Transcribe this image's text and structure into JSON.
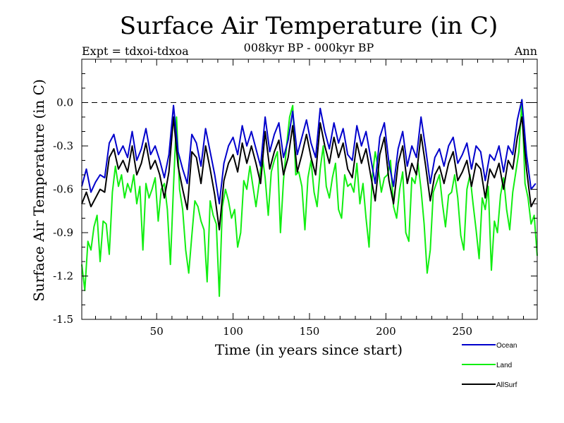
{
  "chart_data": {
    "type": "line",
    "title": "Surface Air Temperature (in C)",
    "subtitle": "008kyr BP - 000kyr BP",
    "left_label": "Expt = tdxoi-tdxoa",
    "right_label": "Ann",
    "xlabel": "Time (in years since start)",
    "ylabel": "Surface Air Temperature (in C)",
    "xlim": [
      1,
      299
    ],
    "ylim": [
      -1.5,
      0.3
    ],
    "xticks": [
      50,
      100,
      150,
      200,
      250
    ],
    "xtick_labels": [
      "50",
      "100",
      "150",
      "200",
      "250"
    ],
    "yticks": [
      -1.5,
      -1.2,
      -0.9,
      -0.6,
      -0.3,
      0.0
    ],
    "ytick_labels": [
      "-1.5",
      "-1.2",
      "-0.9",
      "-0.6",
      "-0.3",
      "0.0"
    ],
    "reference_line": 0.0,
    "series": [
      {
        "name": "Ocean",
        "color": "#0000cc",
        "x": [
          1,
          4,
          7,
          10,
          13,
          16,
          19,
          22,
          25,
          28,
          31,
          34,
          37,
          40,
          43,
          46,
          49,
          52,
          55,
          58,
          61,
          64,
          67,
          70,
          73,
          76,
          79,
          82,
          85,
          88,
          91,
          94,
          97,
          100,
          103,
          106,
          109,
          112,
          115,
          118,
          121,
          124,
          127,
          130,
          133,
          136,
          139,
          142,
          145,
          148,
          151,
          154,
          157,
          160,
          163,
          166,
          169,
          172,
          175,
          178,
          181,
          184,
          187,
          190,
          193,
          196,
          199,
          202,
          205,
          208,
          211,
          214,
          217,
          220,
          223,
          226,
          229,
          232,
          235,
          238,
          241,
          244,
          247,
          250,
          253,
          256,
          259,
          262,
          265,
          268,
          271,
          274,
          277,
          280,
          283,
          286,
          289,
          292,
          295,
          298
        ],
        "values": [
          -0.58,
          -0.46,
          -0.62,
          -0.55,
          -0.5,
          -0.52,
          -0.28,
          -0.22,
          -0.36,
          -0.3,
          -0.38,
          -0.2,
          -0.4,
          -0.32,
          -0.18,
          -0.36,
          -0.3,
          -0.4,
          -0.52,
          -0.36,
          -0.02,
          -0.34,
          -0.46,
          -0.56,
          -0.22,
          -0.28,
          -0.44,
          -0.18,
          -0.34,
          -0.5,
          -0.7,
          -0.42,
          -0.3,
          -0.24,
          -0.36,
          -0.16,
          -0.3,
          -0.2,
          -0.32,
          -0.44,
          -0.1,
          -0.34,
          -0.22,
          -0.14,
          -0.38,
          -0.26,
          -0.06,
          -0.36,
          -0.24,
          -0.12,
          -0.28,
          -0.38,
          -0.04,
          -0.2,
          -0.32,
          -0.14,
          -0.28,
          -0.18,
          -0.36,
          -0.4,
          -0.16,
          -0.3,
          -0.2,
          -0.38,
          -0.56,
          -0.24,
          -0.14,
          -0.42,
          -0.58,
          -0.32,
          -0.2,
          -0.44,
          -0.3,
          -0.38,
          -0.1,
          -0.32,
          -0.56,
          -0.38,
          -0.32,
          -0.44,
          -0.3,
          -0.24,
          -0.42,
          -0.36,
          -0.28,
          -0.46,
          -0.3,
          -0.34,
          -0.54,
          -0.36,
          -0.4,
          -0.3,
          -0.48,
          -0.3,
          -0.36,
          -0.12,
          0.02,
          -0.36,
          -0.6,
          -0.56
        ]
      },
      {
        "name": "Land",
        "color": "#11ee11",
        "x": [
          1,
          3,
          5,
          7,
          9,
          11,
          13,
          15,
          17,
          19,
          21,
          23,
          25,
          27,
          29,
          31,
          33,
          35,
          37,
          39,
          41,
          43,
          45,
          47,
          49,
          51,
          53,
          55,
          57,
          59,
          61,
          63,
          65,
          67,
          69,
          71,
          73,
          75,
          77,
          79,
          81,
          83,
          85,
          87,
          89,
          91,
          93,
          95,
          97,
          99,
          101,
          103,
          105,
          107,
          109,
          111,
          113,
          115,
          117,
          119,
          121,
          123,
          125,
          127,
          129,
          131,
          133,
          135,
          137,
          139,
          141,
          143,
          145,
          147,
          149,
          151,
          153,
          155,
          157,
          159,
          161,
          163,
          165,
          167,
          169,
          171,
          173,
          175,
          177,
          179,
          181,
          183,
          185,
          187,
          189,
          191,
          193,
          195,
          197,
          199,
          201,
          203,
          205,
          207,
          209,
          211,
          213,
          215,
          217,
          219,
          221,
          223,
          225,
          227,
          229,
          231,
          233,
          235,
          237,
          239,
          241,
          243,
          245,
          247,
          249,
          251,
          253,
          255,
          257,
          259,
          261,
          263,
          265,
          267,
          269,
          271,
          273,
          275,
          277,
          279,
          281,
          283,
          285,
          287,
          289,
          291,
          293,
          295,
          297,
          299
        ],
        "values": [
          -1.12,
          -1.3,
          -0.96,
          -1.02,
          -0.86,
          -0.78,
          -1.1,
          -0.82,
          -0.84,
          -1.05,
          -0.62,
          -0.44,
          -0.58,
          -0.5,
          -0.66,
          -0.56,
          -0.62,
          -0.5,
          -0.7,
          -0.58,
          -1.02,
          -0.56,
          -0.66,
          -0.6,
          -0.52,
          -0.82,
          -0.6,
          -0.56,
          -0.74,
          -1.12,
          -0.58,
          -0.1,
          -0.6,
          -0.74,
          -1.02,
          -1.18,
          -0.92,
          -0.68,
          -0.72,
          -0.82,
          -0.88,
          -1.24,
          -0.68,
          -0.78,
          -0.84,
          -1.34,
          -0.72,
          -0.6,
          -0.68,
          -0.8,
          -0.74,
          -1.0,
          -0.9,
          -0.54,
          -0.6,
          -0.44,
          -0.58,
          -0.72,
          -0.56,
          -0.36,
          -0.52,
          -0.78,
          -0.48,
          -0.4,
          -0.34,
          -0.9,
          -0.54,
          -0.3,
          -0.1,
          -0.02,
          -0.5,
          -0.48,
          -0.58,
          -0.88,
          -0.52,
          -0.4,
          -0.62,
          -0.72,
          -0.46,
          -0.3,
          -0.58,
          -0.66,
          -0.52,
          -0.42,
          -0.74,
          -0.8,
          -0.5,
          -0.58,
          -0.56,
          -0.62,
          -0.42,
          -0.7,
          -0.56,
          -0.8,
          -1.0,
          -0.52,
          -0.34,
          -0.46,
          -0.62,
          -0.52,
          -0.5,
          -0.4,
          -0.72,
          -0.8,
          -0.6,
          -0.48,
          -0.9,
          -0.96,
          -0.52,
          -0.56,
          -0.42,
          -0.6,
          -0.84,
          -1.18,
          -1.02,
          -0.62,
          -0.56,
          -0.5,
          -0.7,
          -0.86,
          -0.64,
          -0.62,
          -0.5,
          -0.66,
          -0.92,
          -1.02,
          -0.6,
          -0.5,
          -0.7,
          -0.88,
          -1.08,
          -0.66,
          -0.74,
          -0.58,
          -1.16,
          -0.82,
          -0.9,
          -0.64,
          -0.52,
          -0.74,
          -0.88,
          -0.62,
          -0.48,
          -0.34,
          0.02,
          -0.56,
          -0.66,
          -0.84,
          -0.78,
          -1.06
        ]
      },
      {
        "name": "AllSurf",
        "color": "#000000",
        "x": [
          1,
          4,
          7,
          10,
          13,
          16,
          19,
          22,
          25,
          28,
          31,
          34,
          37,
          40,
          43,
          46,
          49,
          52,
          55,
          58,
          61,
          64,
          67,
          70,
          73,
          76,
          79,
          82,
          85,
          88,
          91,
          94,
          97,
          100,
          103,
          106,
          109,
          112,
          115,
          118,
          121,
          124,
          127,
          130,
          133,
          136,
          139,
          142,
          145,
          148,
          151,
          154,
          157,
          160,
          163,
          166,
          169,
          172,
          175,
          178,
          181,
          184,
          187,
          190,
          193,
          196,
          199,
          202,
          205,
          208,
          211,
          214,
          217,
          220,
          223,
          226,
          229,
          232,
          235,
          238,
          241,
          244,
          247,
          250,
          253,
          256,
          259,
          262,
          265,
          268,
          271,
          274,
          277,
          280,
          283,
          286,
          289,
          292,
          295,
          298
        ],
        "values": [
          -0.7,
          -0.62,
          -0.72,
          -0.66,
          -0.6,
          -0.62,
          -0.38,
          -0.32,
          -0.46,
          -0.4,
          -0.48,
          -0.3,
          -0.5,
          -0.42,
          -0.28,
          -0.46,
          -0.4,
          -0.5,
          -0.66,
          -0.48,
          -0.1,
          -0.44,
          -0.6,
          -0.74,
          -0.34,
          -0.38,
          -0.56,
          -0.3,
          -0.46,
          -0.64,
          -0.88,
          -0.54,
          -0.42,
          -0.36,
          -0.48,
          -0.28,
          -0.42,
          -0.3,
          -0.42,
          -0.56,
          -0.2,
          -0.46,
          -0.34,
          -0.26,
          -0.5,
          -0.38,
          -0.16,
          -0.48,
          -0.36,
          -0.22,
          -0.38,
          -0.5,
          -0.14,
          -0.3,
          -0.42,
          -0.24,
          -0.38,
          -0.28,
          -0.46,
          -0.52,
          -0.28,
          -0.42,
          -0.32,
          -0.5,
          -0.68,
          -0.36,
          -0.24,
          -0.54,
          -0.7,
          -0.42,
          -0.3,
          -0.56,
          -0.42,
          -0.5,
          -0.22,
          -0.44,
          -0.68,
          -0.5,
          -0.44,
          -0.56,
          -0.42,
          -0.34,
          -0.54,
          -0.48,
          -0.4,
          -0.58,
          -0.42,
          -0.46,
          -0.66,
          -0.46,
          -0.52,
          -0.42,
          -0.6,
          -0.4,
          -0.46,
          -0.24,
          -0.1,
          -0.46,
          -0.72,
          -0.66
        ]
      }
    ],
    "legend": [
      {
        "label": "Ocean",
        "color": "#0000cc"
      },
      {
        "label": "Land",
        "color": "#11ee11"
      },
      {
        "label": "AllSurf",
        "color": "#000000"
      }
    ]
  }
}
